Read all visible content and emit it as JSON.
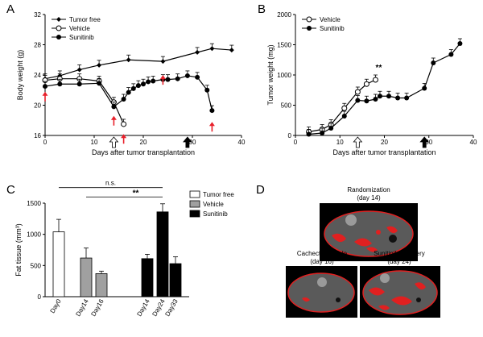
{
  "panels": {
    "A": {
      "letter": "A"
    },
    "B": {
      "letter": "B"
    },
    "C": {
      "letter": "C"
    },
    "D": {
      "letter": "D"
    }
  },
  "chart_data": [
    {
      "id": "A",
      "type": "line",
      "xlabel": "Days after tumor transplantation",
      "ylabel": "Body weight (g)",
      "xlim": [
        0,
        40
      ],
      "ylim": [
        16,
        32
      ],
      "xticks": [
        0,
        10,
        20,
        30,
        40
      ],
      "yticks": [
        16,
        20,
        24,
        28,
        32
      ],
      "legend": "top-left",
      "series": [
        {
          "name": "Tumor free",
          "marker": "diamond",
          "x": [
            0,
            3,
            7,
            11,
            17,
            24,
            31,
            34,
            38
          ],
          "y": [
            23.5,
            23.9,
            24.7,
            25.3,
            26.0,
            25.8,
            27.0,
            27.5,
            27.3
          ]
        },
        {
          "name": "Vehicle",
          "marker": "open-circle",
          "x": [
            0,
            3,
            7,
            11,
            14,
            16
          ],
          "y": [
            23.3,
            23.5,
            23.5,
            23.2,
            20.4,
            17.5
          ]
        },
        {
          "name": "Sunitinib",
          "marker": "filled-circle",
          "x": [
            0,
            3,
            7,
            11,
            14,
            16,
            17,
            18,
            19,
            20,
            21,
            22,
            24,
            25,
            27,
            29,
            31,
            33,
            34
          ],
          "y": [
            22.5,
            22.8,
            22.8,
            22.9,
            19.8,
            20.8,
            21.7,
            22.2,
            22.6,
            22.8,
            23.1,
            23.2,
            23.4,
            23.4,
            23.5,
            23.9,
            23.7,
            22.0,
            19.3
          ]
        }
      ],
      "annotations": {
        "open_arrow_x": 14,
        "filled_arrow_x": 29,
        "red_arrows_x": [
          0,
          14,
          16,
          24,
          34
        ]
      }
    },
    {
      "id": "B",
      "type": "line",
      "xlabel": "Days after tumor transplantation",
      "ylabel": "Tumor weight (mg)",
      "xlim": [
        0,
        40
      ],
      "ylim": [
        0,
        2000
      ],
      "xticks": [
        0,
        10,
        20,
        30,
        40
      ],
      "yticks": [
        0,
        500,
        1000,
        1500,
        2000
      ],
      "legend": "top-left",
      "series": [
        {
          "name": "Vehicle",
          "marker": "open-circle",
          "x": [
            3,
            6,
            8,
            11,
            14,
            16,
            18
          ],
          "y": [
            60,
            100,
            180,
            450,
            720,
            850,
            920
          ]
        },
        {
          "name": "Sunitinib",
          "marker": "filled-circle",
          "x": [
            3,
            6,
            8,
            11,
            14,
            16,
            18,
            19,
            21,
            23,
            25,
            29,
            31,
            35,
            37
          ],
          "y": [
            20,
            40,
            120,
            320,
            580,
            570,
            600,
            650,
            650,
            620,
            620,
            780,
            1200,
            1340,
            1520
          ]
        }
      ],
      "annotations": {
        "significance": "**",
        "significance_x": 18,
        "open_arrow_x": 14,
        "filled_arrow_x": 29
      }
    },
    {
      "id": "C",
      "type": "bar",
      "ylabel": "Fat tissue (mm³)",
      "ylim": [
        0,
        1500
      ],
      "yticks": [
        0,
        500,
        1000,
        1500
      ],
      "categories": [
        "Day0",
        "Day14",
        "Day16",
        "Day14",
        "Day24",
        "Day33"
      ],
      "groups": [
        "Tumor free",
        "Vehicle",
        "Vehicle",
        "Sunitinib",
        "Sunitinib",
        "Sunitinib"
      ],
      "values": [
        1040,
        620,
        370,
        610,
        1360,
        530
      ],
      "errors": [
        200,
        160,
        40,
        70,
        130,
        110
      ],
      "legend": "top-right",
      "legend_entries": [
        {
          "name": "Tumor free",
          "color": "#ffffff"
        },
        {
          "name": "Vehicle",
          "color": "#a0a0a0"
        },
        {
          "name": "Sunitinib",
          "color": "#000000"
        }
      ],
      "annotations": {
        "ns_label": "n.s.",
        "sig_label": "**"
      }
    }
  ],
  "panel_d": {
    "top": {
      "caption_line1": "Randomization",
      "caption_line2": "(day 14)"
    },
    "bottom_left": {
      "caption_line1": "Cachectic vehicle",
      "caption_line2": "(day 16)"
    },
    "bottom_right": {
      "caption_line1": "Sunitinib recovery",
      "caption_line2": "(day 24)"
    }
  },
  "colors": {
    "axis": "#000000",
    "red_arrow": "#e8202a",
    "fat": "#e02020",
    "tissue": "#555555",
    "scan_bg": "#000000"
  }
}
